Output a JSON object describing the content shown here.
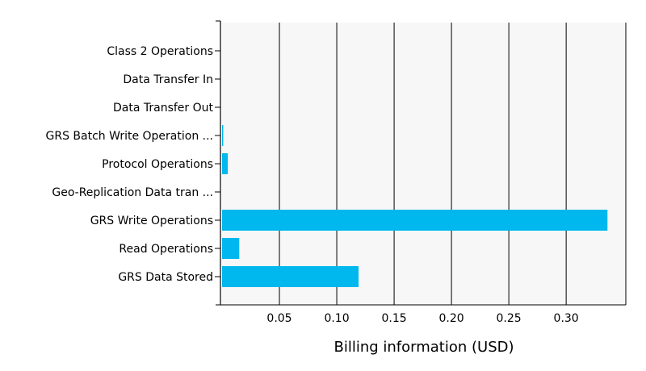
{
  "chart_data": {
    "type": "bar",
    "orientation": "horizontal",
    "categories": [
      "Class 2 Operations",
      "Data Transfer In",
      "Data Transfer Out",
      "GRS Batch Write Operation ...",
      "Protocol Operations",
      "Geo-Replication Data tran ...",
      "GRS Write Operations",
      "Read Operations",
      "GRS Data Stored"
    ],
    "values": [
      0,
      0,
      0,
      0.001,
      0.005,
      0,
      0.336,
      0.015,
      0.119
    ],
    "xlabel": "Billing information (USD)",
    "ylabel": "",
    "xlim": [
      0,
      0.352
    ],
    "xticks": [
      "0.05",
      "0.10",
      "0.15",
      "0.20",
      "0.25",
      "0.30"
    ],
    "grid": true,
    "legend": "none",
    "bar_color": "#00b7ee",
    "plot_background": "#f7f7f7",
    "gridline_color": "#000000"
  }
}
